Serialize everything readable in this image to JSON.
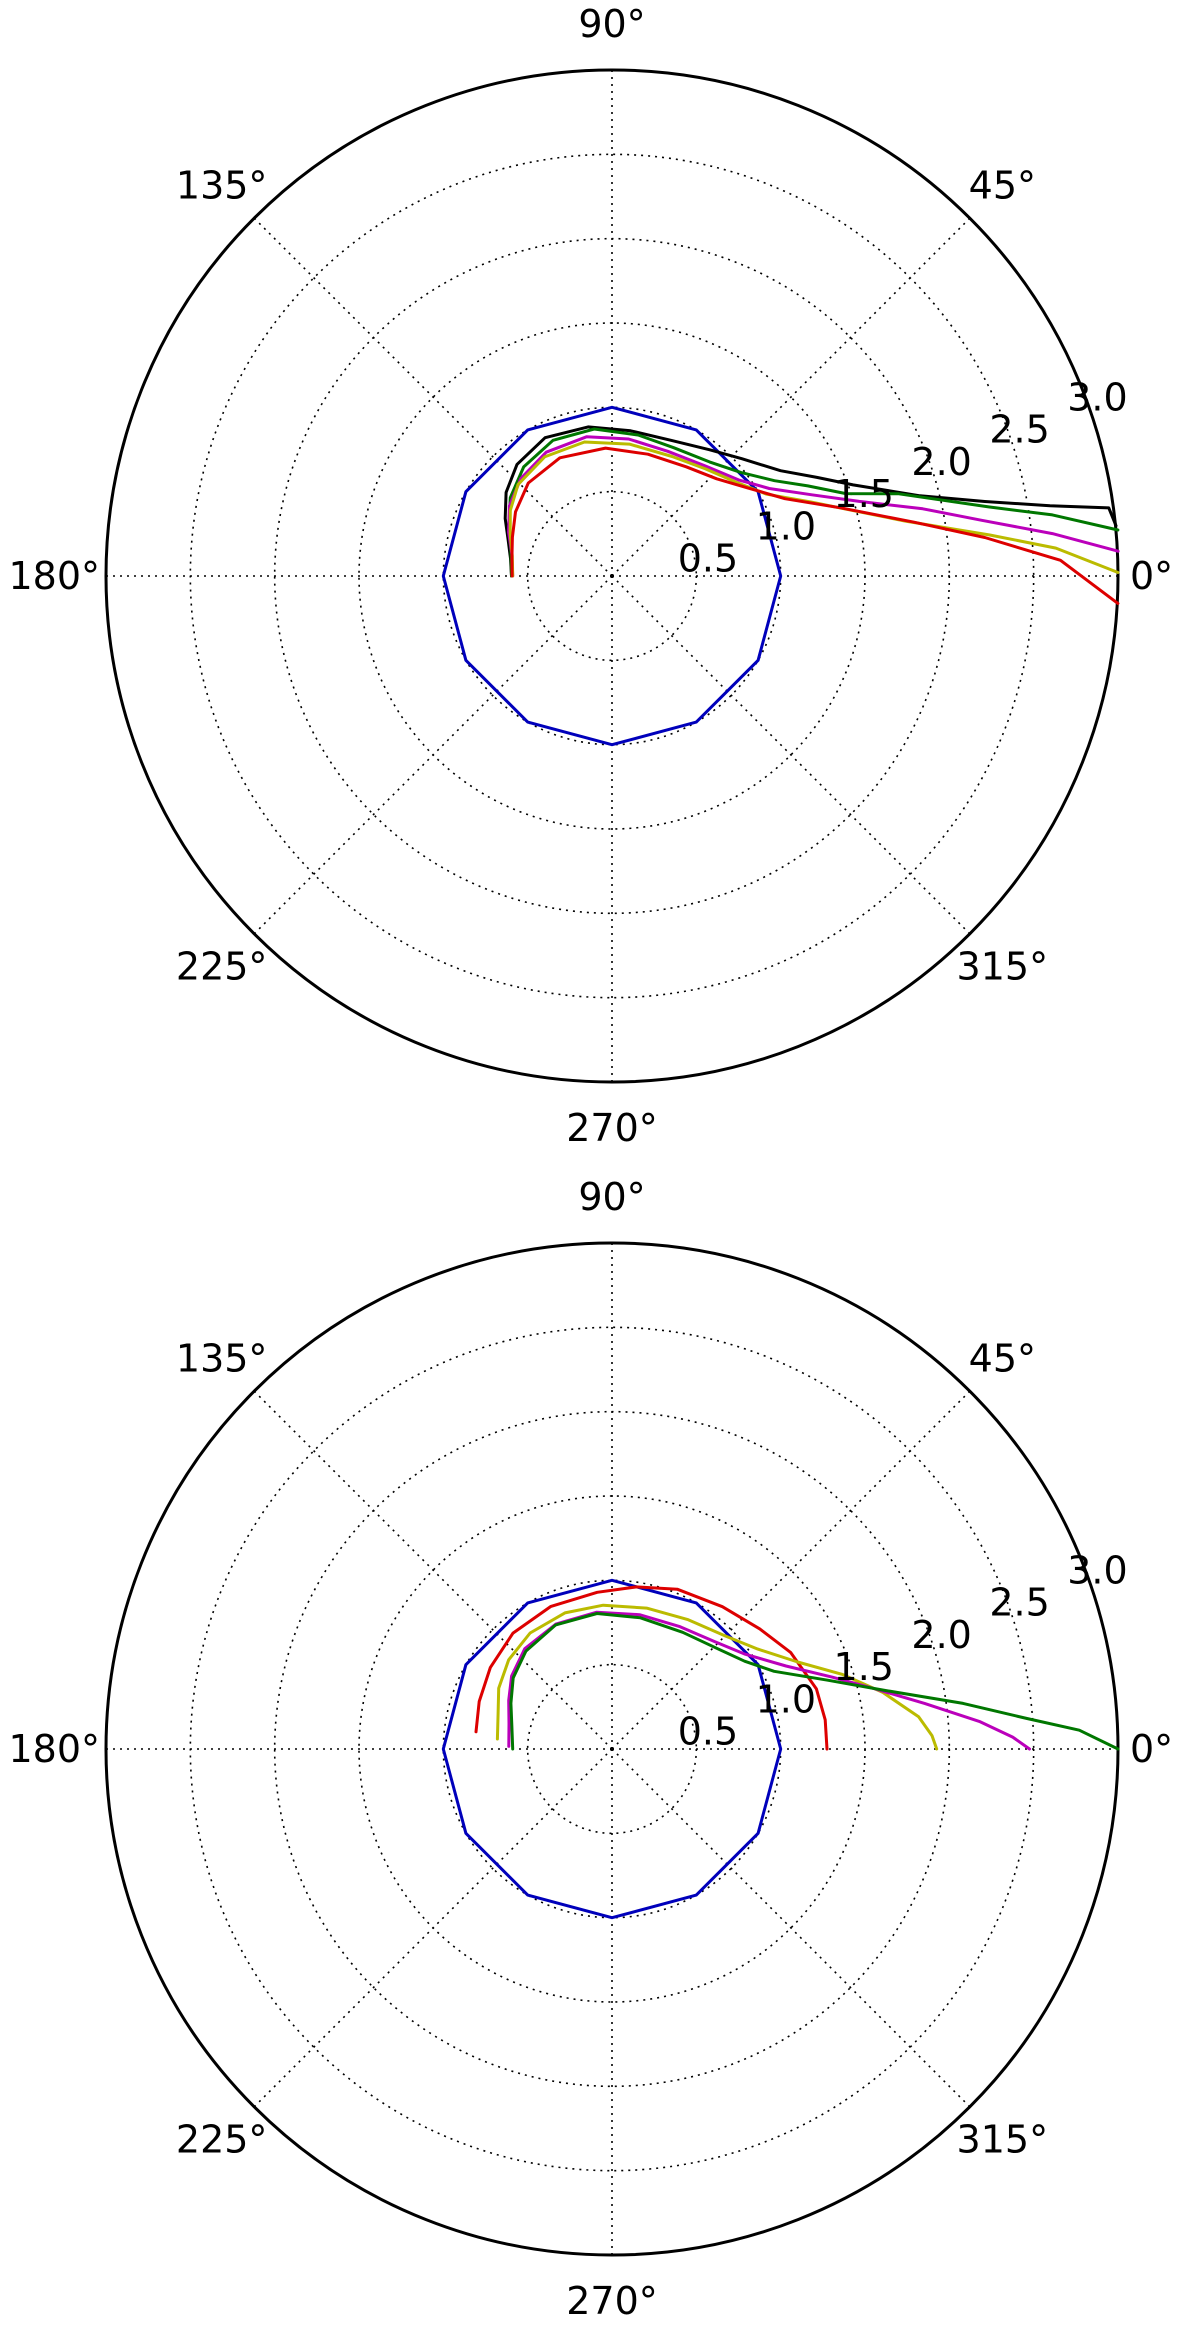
{
  "chart_data": [
    {
      "type": "line",
      "projection": "polar",
      "theta_tick_labels": [
        "0°",
        "45°",
        "90°",
        "135°",
        "180°",
        "225°",
        "270°",
        "315°"
      ],
      "r_tick_labels": [
        "0.5",
        "1.0",
        "1.5",
        "2.0",
        "2.5",
        "3.0"
      ],
      "r_ticks": [
        0.5,
        1.0,
        1.5,
        2.0,
        2.5,
        3.0
      ],
      "rlim": [
        0,
        3.0
      ],
      "grid": true,
      "series": [
        {
          "color": "#0000bb",
          "points": [
            [
              0,
              1
            ],
            [
              30,
              1
            ],
            [
              60,
              1
            ],
            [
              90,
              1
            ],
            [
              120,
              1
            ],
            [
              150,
              1
            ],
            [
              180,
              1
            ],
            [
              210,
              1
            ],
            [
              240,
              1
            ],
            [
              270,
              1
            ],
            [
              300,
              1
            ],
            [
              330,
              1
            ],
            [
              360,
              1
            ]
          ]
        },
        {
          "color": "#000000",
          "points": [
            [
              180.0,
              0.596
            ],
            [
              170.1,
              0.611
            ],
            [
              160.7,
              0.653
            ],
            [
              151.7,
              0.719
            ],
            [
              141.7,
              0.8
            ],
            [
              130.4,
              0.869
            ],
            [
              115.8,
              0.911
            ],
            [
              99.1,
              0.895
            ],
            [
              82.7,
              0.868
            ],
            [
              66.3,
              0.878
            ],
            [
              52.4,
              0.945
            ],
            [
              42.1,
              1.037
            ],
            [
              32.0,
              1.178
            ],
            [
              25.7,
              1.348
            ],
            [
              20.7,
              1.528
            ],
            [
              14.6,
              1.887
            ],
            [
              11.3,
              2.254
            ],
            [
              9.1,
              2.63
            ],
            [
              7.8,
              2.973
            ],
            [
              5.7,
              3.003
            ]
          ]
        },
        {
          "color": "#007700",
          "points": [
            [
              180.0,
              0.596
            ],
            [
              166.6,
              0.616
            ],
            [
              154.2,
              0.679
            ],
            [
              142.4,
              0.761
            ],
            [
              129.0,
              0.832
            ],
            [
              113.5,
              0.877
            ],
            [
              96.9,
              0.878
            ],
            [
              79.5,
              0.85
            ],
            [
              64.3,
              0.844
            ],
            [
              49.5,
              0.89
            ],
            [
              38.8,
              0.98
            ],
            [
              30.4,
              1.117
            ],
            [
              24.7,
              1.278
            ],
            [
              19.4,
              1.47
            ],
            [
              16.0,
              1.769
            ],
            [
              10.4,
              2.27
            ],
            [
              7.9,
              2.636
            ],
            [
              5.2,
              3.012
            ]
          ]
        },
        {
          "color": "#bb00bb",
          "points": [
            [
              180.0,
              0.589
            ],
            [
              167.8,
              0.607
            ],
            [
              157.0,
              0.666
            ],
            [
              145.7,
              0.736
            ],
            [
              133.1,
              0.791
            ],
            [
              118.0,
              0.831
            ],
            [
              100.4,
              0.839
            ],
            [
              83.1,
              0.818
            ],
            [
              65.9,
              0.81
            ],
            [
              49.5,
              0.856
            ],
            [
              37.2,
              0.942
            ],
            [
              29.1,
              1.067
            ],
            [
              22.1,
              1.279
            ],
            [
              16.8,
              1.531
            ],
            [
              12.2,
              1.885
            ],
            [
              8.6,
              2.213
            ],
            [
              5.5,
              2.623
            ],
            [
              2.8,
              3.004
            ]
          ]
        },
        {
          "color": "#bbbb00",
          "points": [
            [
              180.0,
              0.589
            ],
            [
              168.7,
              0.603
            ],
            [
              157.8,
              0.652
            ],
            [
              147.2,
              0.717
            ],
            [
              135.8,
              0.777
            ],
            [
              119.5,
              0.811
            ],
            [
              101.6,
              0.811
            ],
            [
              82.5,
              0.789
            ],
            [
              63.3,
              0.793
            ],
            [
              48.9,
              0.843
            ],
            [
              37.0,
              0.923
            ],
            [
              27.9,
              1.037
            ],
            [
              20.4,
              1.258
            ],
            [
              14.5,
              1.517
            ],
            [
              10.6,
              1.77
            ],
            [
              6.2,
              2.253
            ],
            [
              3.6,
              2.637
            ],
            [
              0.4,
              3.0
            ]
          ]
        },
        {
          "color": "#dd0000",
          "points": [
            [
              180.0,
              0.592
            ],
            [
              170.3,
              0.602
            ],
            [
              158.7,
              0.634
            ],
            [
              146.4,
              0.687
            ],
            [
              132.0,
              0.742
            ],
            [
              113.8,
              0.766
            ],
            [
              92.9,
              0.759
            ],
            [
              73.6,
              0.753
            ],
            [
              55.8,
              0.783
            ],
            [
              42.9,
              0.847
            ],
            [
              33.0,
              0.959
            ],
            [
              24.1,
              1.123
            ],
            [
              16.7,
              1.41
            ],
            [
              10.1,
              1.819
            ],
            [
              5.9,
              2.222
            ],
            [
              2.0,
              2.661
            ],
            [
              356.9,
              3.004
            ]
          ]
        }
      ]
    },
    {
      "type": "line",
      "projection": "polar",
      "theta_tick_labels": [
        "0°",
        "45°",
        "90°",
        "135°",
        "180°",
        "225°",
        "270°",
        "315°"
      ],
      "r_tick_labels": [
        "0.5",
        "1.0",
        "1.5",
        "2.0",
        "2.5",
        "3.0"
      ],
      "r_ticks": [
        0.5,
        1.0,
        1.5,
        2.0,
        2.5,
        3.0
      ],
      "rlim": [
        0,
        3.0
      ],
      "grid": true,
      "series": [
        {
          "color": "#0000bb",
          "points": [
            [
              0,
              1
            ],
            [
              30,
              1
            ],
            [
              60,
              1
            ],
            [
              90,
              1
            ],
            [
              120,
              1
            ],
            [
              150,
              1
            ],
            [
              180,
              1
            ],
            [
              210,
              1
            ],
            [
              240,
              1
            ],
            [
              270,
              1
            ],
            [
              300,
              1
            ],
            [
              330,
              1
            ],
            [
              360,
              1
            ]
          ]
        },
        {
          "color": "#dd0000",
          "points": [
            [
              172.8,
              0.813
            ],
            [
              160.3,
              0.836
            ],
            [
              146.2,
              0.868
            ],
            [
              130.5,
              0.904
            ],
            [
              113.2,
              0.92
            ],
            [
              95.4,
              0.933
            ],
            [
              81.5,
              0.972
            ],
            [
              67.8,
              1.023
            ],
            [
              52.2,
              1.068
            ],
            [
              39.1,
              1.129
            ],
            [
              28.4,
              1.204
            ],
            [
              16.4,
              1.263
            ],
            [
              7.8,
              1.276
            ],
            [
              0.0,
              1.275
            ]
          ]
        },
        {
          "color": "#bbbb00",
          "points": [
            [
              175.0,
              0.682
            ],
            [
              162.7,
              0.707
            ],
            [
              151.8,
              0.762
            ],
            [
              139.2,
              0.809
            ],
            [
              125.2,
              0.842
            ],
            [
              109.1,
              0.854
            ],
            [
              93.5,
              0.854
            ],
            [
              76.2,
              0.86
            ],
            [
              59.5,
              0.89
            ],
            [
              44.9,
              0.949
            ],
            [
              34.4,
              1.048
            ],
            [
              25.1,
              1.216
            ],
            [
              18.0,
              1.434
            ],
            [
              11.8,
              1.64
            ],
            [
              6.0,
              1.828
            ],
            [
              2.4,
              1.899
            ],
            [
              0.0,
              1.925
            ]
          ]
        },
        {
          "color": "#bb00bb",
          "points": [
            [
              178.5,
              0.612
            ],
            [
              166.1,
              0.629
            ],
            [
              154.9,
              0.676
            ],
            [
              144.0,
              0.736
            ],
            [
              131.0,
              0.788
            ],
            [
              114.2,
              0.812
            ],
            [
              96.4,
              0.816
            ],
            [
              78.4,
              0.813
            ],
            [
              60.9,
              0.83
            ],
            [
              46.3,
              0.881
            ],
            [
              35.7,
              0.966
            ],
            [
              25.5,
              1.143
            ],
            [
              18.1,
              1.372
            ],
            [
              12.8,
              1.604
            ],
            [
              8.3,
              1.873
            ],
            [
              4.3,
              2.184
            ],
            [
              1.7,
              2.377
            ],
            [
              0.0,
              2.475
            ]
          ]
        },
        {
          "color": "#007700",
          "points": [
            [
              180.0,
              0.589
            ],
            [
              166.5,
              0.611
            ],
            [
              155.7,
              0.658
            ],
            [
              144.2,
              0.722
            ],
            [
              131.3,
              0.773
            ],
            [
              114.4,
              0.808
            ],
            [
              96.3,
              0.808
            ],
            [
              77.8,
              0.796
            ],
            [
              58.8,
              0.809
            ],
            [
              44.3,
              0.859
            ],
            [
              33.5,
              0.943
            ],
            [
              25.6,
              1.066
            ],
            [
              17.7,
              1.342
            ],
            [
              12.3,
              1.642
            ],
            [
              7.4,
              2.099
            ],
            [
              4.2,
              2.467
            ],
            [
              2.3,
              2.773
            ],
            [
              0.0,
              3.0
            ]
          ]
        }
      ]
    }
  ]
}
